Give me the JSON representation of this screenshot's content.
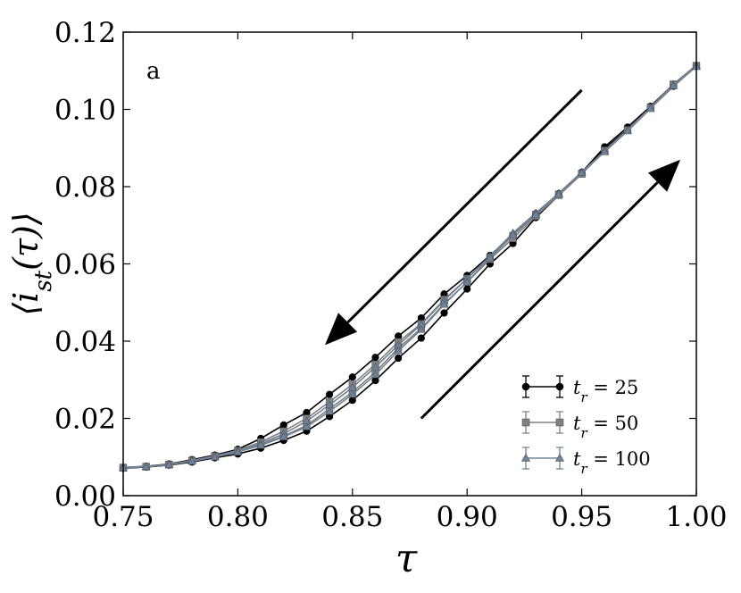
{
  "chart_data": {
    "type": "line",
    "panel_label": "a",
    "xlabel": "τ",
    "ylabel": "⟨i_st(τ)⟩",
    "xlim": [
      0.75,
      1.0
    ],
    "ylim": [
      0.0,
      0.12
    ],
    "xticks": [
      "0.75",
      "0.80",
      "0.85",
      "0.90",
      "0.95",
      "1.00"
    ],
    "yticks": [
      "0.00",
      "0.02",
      "0.04",
      "0.06",
      "0.08",
      "0.10",
      "0.12"
    ],
    "grid": false,
    "legend_position": "lower-right",
    "x": [
      0.75,
      0.76,
      0.77,
      0.78,
      0.79,
      0.8,
      0.81,
      0.82,
      0.83,
      0.84,
      0.85,
      0.86,
      0.87,
      0.88,
      0.89,
      0.9,
      0.91,
      0.92,
      0.93,
      0.94,
      0.95,
      0.96,
      0.97,
      0.98,
      0.99,
      1.0
    ],
    "series": [
      {
        "name": "t_r = 25",
        "label_var": "t",
        "label_sub": "r",
        "label_value": " = 25",
        "color": "#000000",
        "marker": "circle",
        "branches": [
          [
            0.0073,
            0.0076,
            0.0082,
            0.0093,
            0.0105,
            0.012,
            0.0148,
            0.0183,
            0.0215,
            0.0262,
            0.0307,
            0.0358,
            0.0413,
            0.046,
            0.0522,
            0.057,
            0.0622,
            0.0675,
            0.073,
            0.0782,
            0.0837,
            0.0903,
            0.0954,
            0.1008,
            0.1065,
            0.1114
          ],
          [
            0.0071,
            0.0074,
            0.0079,
            0.0087,
            0.0098,
            0.0108,
            0.0123,
            0.0143,
            0.0167,
            0.0205,
            0.0247,
            0.0298,
            0.0356,
            0.0408,
            0.0473,
            0.0535,
            0.06,
            0.0653,
            0.072,
            0.0778,
            0.0833,
            0.0898,
            0.0948,
            0.1003,
            0.106,
            0.1112
          ]
        ]
      },
      {
        "name": "t_r = 50",
        "label_var": "t",
        "label_sub": "r",
        "label_value": " = 50",
        "color": "#808080",
        "marker": "square",
        "branches": [
          [
            0.0073,
            0.0075,
            0.0081,
            0.0091,
            0.0103,
            0.0117,
            0.0139,
            0.0167,
            0.02,
            0.0243,
            0.0288,
            0.034,
            0.0398,
            0.0445,
            0.0508,
            0.0562,
            0.0617,
            0.0673,
            0.0728,
            0.078,
            0.0834,
            0.0894,
            0.0947,
            0.1005,
            0.1065,
            0.1113
          ],
          [
            0.0072,
            0.0075,
            0.008,
            0.009,
            0.0101,
            0.0114,
            0.0132,
            0.0154,
            0.0182,
            0.0225,
            0.0268,
            0.032,
            0.0382,
            0.0433,
            0.0497,
            0.0553,
            0.0612,
            0.0666,
            0.0724,
            0.0778,
            0.0833,
            0.0893,
            0.0946,
            0.1004,
            0.1064,
            0.1112
          ]
        ]
      },
      {
        "name": "t_r = 100",
        "label_var": "t",
        "label_sub": "r",
        "label_value": " = 100",
        "color": "#6f8296",
        "marker": "triangle",
        "branches": [
          [
            0.0073,
            0.0075,
            0.0081,
            0.009,
            0.0102,
            0.0115,
            0.0135,
            0.016,
            0.0193,
            0.0235,
            0.028,
            0.0333,
            0.039,
            0.0443,
            0.0505,
            0.0562,
            0.062,
            0.068,
            0.0732,
            0.0783,
            0.0838,
            0.0892,
            0.0945,
            0.1003,
            0.1062,
            0.1112
          ],
          [
            0.0072,
            0.0075,
            0.008,
            0.0089,
            0.01,
            0.0113,
            0.013,
            0.0152,
            0.0178,
            0.0218,
            0.0262,
            0.0313,
            0.0375,
            0.043,
            0.0495,
            0.0553,
            0.0615,
            0.0675,
            0.0728,
            0.078,
            0.0836,
            0.089,
            0.0944,
            0.1002,
            0.1061,
            0.1111
          ]
        ]
      }
    ],
    "annotations": [
      {
        "type": "arrow",
        "from": [
          0.95,
          0.105
        ],
        "to": [
          0.838,
          0.039
        ],
        "direction": "decreasing τ"
      },
      {
        "type": "arrow",
        "from": [
          0.88,
          0.02
        ],
        "to": [
          0.993,
          0.087
        ],
        "direction": "increasing τ"
      }
    ]
  }
}
